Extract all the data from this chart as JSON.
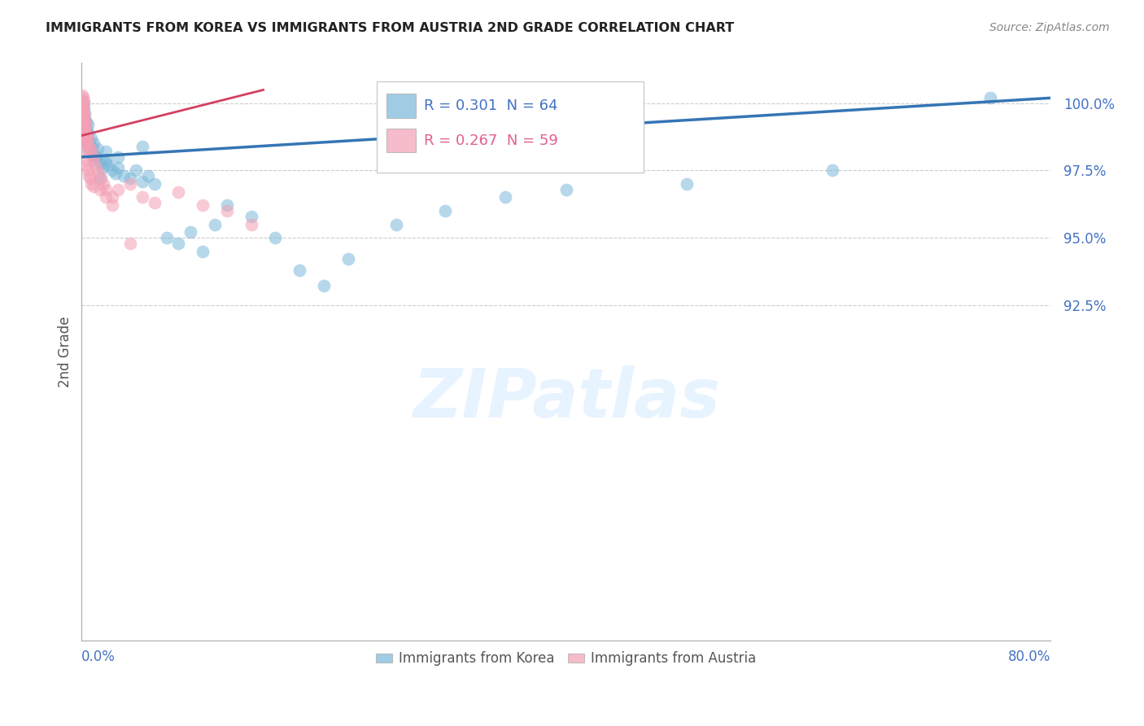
{
  "title": "IMMIGRANTS FROM KOREA VS IMMIGRANTS FROM AUSTRIA 2ND GRADE CORRELATION CHART",
  "source": "Source: ZipAtlas.com",
  "ylabel": "2nd Grade",
  "yticks": [
    80.0,
    92.5,
    95.0,
    97.5,
    100.0
  ],
  "ytick_labels": [
    "",
    "92.5%",
    "95.0%",
    "97.5%",
    "100.0%"
  ],
  "xlim": [
    0.0,
    80.0
  ],
  "ylim": [
    80.0,
    101.5
  ],
  "korea_color": "#7ab8d9",
  "austria_color": "#f4a0b5",
  "korea_line_color": "#3575b5",
  "austria_line_color": "#d44060",
  "korea_x": [
    0.1,
    0.15,
    0.2,
    0.2,
    0.25,
    0.25,
    0.3,
    0.3,
    0.35,
    0.4,
    0.4,
    0.45,
    0.5,
    0.5,
    0.6,
    0.6,
    0.7,
    0.8,
    0.9,
    1.0,
    1.0,
    1.1,
    1.2,
    1.3,
    1.5,
    1.7,
    2.0,
    2.0,
    2.2,
    2.5,
    2.8,
    3.0,
    3.5,
    4.0,
    4.5,
    5.0,
    5.5,
    6.0,
    7.0,
    8.0,
    9.0,
    10.0,
    11.0,
    12.0,
    14.0,
    16.0,
    18.0,
    20.0,
    22.0,
    26.0,
    30.0,
    35.0,
    40.0,
    50.0,
    62.0,
    75.0,
    0.3,
    0.4,
    0.5,
    0.6,
    1.5,
    2.0,
    3.0,
    5.0
  ],
  "korea_y": [
    99.5,
    99.8,
    99.2,
    100.0,
    99.6,
    99.4,
    99.1,
    98.8,
    99.0,
    98.7,
    99.3,
    98.5,
    98.9,
    98.4,
    98.6,
    98.2,
    98.4,
    98.7,
    98.3,
    98.5,
    98.1,
    97.9,
    98.0,
    98.3,
    97.8,
    97.6,
    97.9,
    98.2,
    97.7,
    97.5,
    97.4,
    97.6,
    97.3,
    97.2,
    97.5,
    97.1,
    97.3,
    97.0,
    95.0,
    94.8,
    95.2,
    94.5,
    95.5,
    96.2,
    95.8,
    95.0,
    93.8,
    93.2,
    94.2,
    95.5,
    96.0,
    96.5,
    96.8,
    97.0,
    97.5,
    100.2,
    98.8,
    99.0,
    99.2,
    98.5,
    97.2,
    97.8,
    98.0,
    98.4
  ],
  "austria_x": [
    0.02,
    0.04,
    0.05,
    0.07,
    0.08,
    0.1,
    0.1,
    0.12,
    0.14,
    0.15,
    0.16,
    0.18,
    0.2,
    0.2,
    0.22,
    0.25,
    0.28,
    0.3,
    0.3,
    0.35,
    0.4,
    0.45,
    0.5,
    0.6,
    0.7,
    0.8,
    0.9,
    1.0,
    1.2,
    1.4,
    1.6,
    1.8,
    2.0,
    2.5,
    3.0,
    4.0,
    5.0,
    6.0,
    8.0,
    10.0,
    12.0,
    14.0,
    0.06,
    0.08,
    0.15,
    0.2,
    0.25,
    0.3,
    0.35,
    0.4,
    0.5,
    0.6,
    0.7,
    0.8,
    1.0,
    1.5,
    2.0,
    2.5,
    4.0
  ],
  "austria_y": [
    100.3,
    100.1,
    100.0,
    99.8,
    100.2,
    99.7,
    99.9,
    99.5,
    99.8,
    99.6,
    100.1,
    99.3,
    99.6,
    99.2,
    99.4,
    99.0,
    99.2,
    98.9,
    99.1,
    98.7,
    98.8,
    98.5,
    98.7,
    98.4,
    98.3,
    98.2,
    98.0,
    97.8,
    97.6,
    97.4,
    97.2,
    97.0,
    96.8,
    96.5,
    96.8,
    97.0,
    96.5,
    96.3,
    96.7,
    96.2,
    96.0,
    95.5,
    100.0,
    99.5,
    99.0,
    98.6,
    98.5,
    98.2,
    97.9,
    97.7,
    97.5,
    97.3,
    97.2,
    97.0,
    96.9,
    96.8,
    96.5,
    96.2,
    94.8
  ]
}
